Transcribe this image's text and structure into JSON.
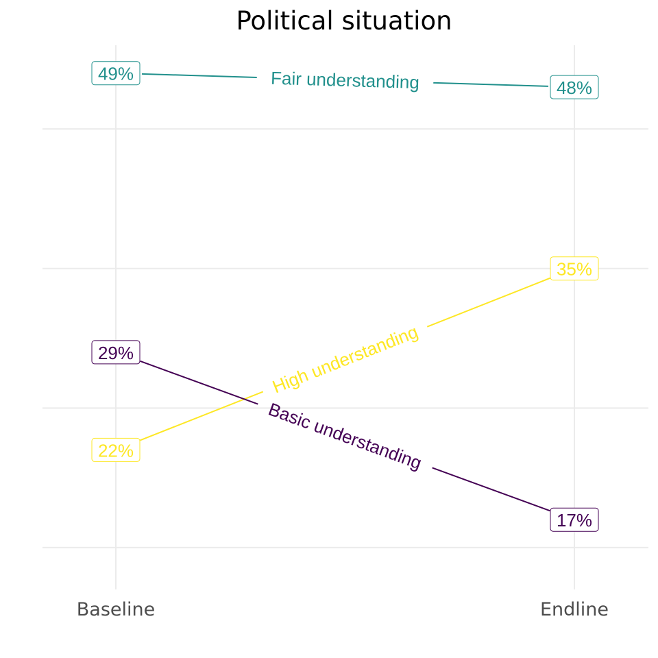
{
  "chart_data": {
    "type": "line",
    "title": "Political situation",
    "xlabel": "",
    "ylabel": "",
    "categories": [
      "Baseline",
      "Endline"
    ],
    "ylim": [
      12,
      51
    ],
    "grid": true,
    "legend": "none (direct labels on lines)",
    "series": [
      {
        "name": "Fair understanding",
        "values": [
          49,
          48
        ],
        "labels": [
          "49%",
          "48%"
        ],
        "color": "#21908c"
      },
      {
        "name": "High understanding",
        "values": [
          22,
          35
        ],
        "labels": [
          "22%",
          "35%"
        ],
        "color": "#fde725"
      },
      {
        "name": "Basic understanding",
        "values": [
          29,
          17
        ],
        "labels": [
          "29%",
          "17%"
        ],
        "color": "#440154"
      }
    ]
  }
}
